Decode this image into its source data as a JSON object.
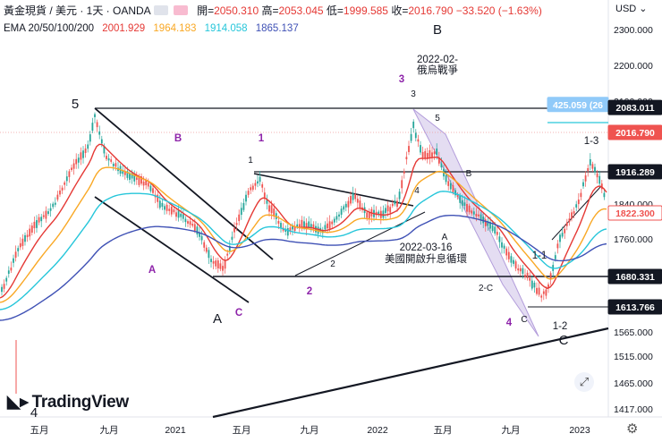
{
  "header": {
    "symbol": "黃金現貨 / 美元 · 1天 · OANDA",
    "ohlc": [
      {
        "label": "開=",
        "value": "2050.310"
      },
      {
        "label": "高=",
        "value": "2053.045"
      },
      {
        "label": "低=",
        "value": "1999.585"
      },
      {
        "label": "收=",
        "value": "2016.790"
      },
      {
        "label": "",
        "value": "−33.520 (−1.63%)"
      }
    ],
    "currency": "USD ⌄"
  },
  "ema": {
    "label": "EMA 20/50/100/200",
    "values": [
      {
        "value": "2001.929",
        "color": "#e53935"
      },
      {
        "value": "1964.183",
        "color": "#f9a825"
      },
      {
        "value": "1914.058",
        "color": "#26c6da"
      },
      {
        "value": "1865.137",
        "color": "#3f51b5"
      }
    ]
  },
  "branding": {
    "logo_text": "TradingView",
    "gear_icon": "gear-icon",
    "wand_icon": "magic-wand-icon"
  },
  "chart_data": {
    "type": "candlestick",
    "instrument": "XAUUSD",
    "timeframe": "1D",
    "x_ticks": [
      "五月",
      "九月",
      "2021",
      "五月",
      "九月",
      "2022",
      "五月",
      "九月",
      "2023"
    ],
    "y_ticks": [
      2300.0,
      2200.0,
      2100.0,
      1840.0,
      1760.0,
      1565.0,
      1515.0,
      1465.0,
      1417.0
    ],
    "y_tick_labels": [
      "2300.000",
      "2200.000",
      "2100.000",
      "1840.000",
      "1760.000",
      "1565.000",
      "1515.000",
      "1465.000",
      "1417.000"
    ],
    "ylim": [
      1400,
      2325
    ],
    "price_labels": [
      {
        "text": "425.059 (26",
        "value": 2091,
        "color": "#90caf9",
        "text_color": "#ffffff"
      },
      {
        "text": "2083.011",
        "value": 2083.011,
        "color": "#131722",
        "text_color": "#ffffff"
      },
      {
        "text": "2016.790",
        "value": 2016.79,
        "color": "#ef5350",
        "text_color": "#ffffff"
      },
      {
        "text": "1916.289",
        "value": 1916.289,
        "color": "#131722",
        "text_color": "#ffffff"
      },
      {
        "text": "1822.300",
        "value": 1822.3,
        "color": "#ffffff",
        "text_color": "#ef5350"
      },
      {
        "text": "1680.331",
        "value": 1680.331,
        "color": "#131722",
        "text_color": "#ffffff"
      },
      {
        "text": "1613.766",
        "value": 1613.766,
        "color": "#131722",
        "text_color": "#ffffff"
      }
    ],
    "annotations": [
      {
        "text": "5",
        "color": "#131722",
        "size": "big"
      },
      {
        "text": "4",
        "color": "#131722",
        "size": "big"
      },
      {
        "text": "A",
        "color": "#131722",
        "size": "big"
      },
      {
        "text": "B",
        "color": "#131722",
        "size": "big"
      },
      {
        "text": "C",
        "color": "#131722",
        "size": "big"
      },
      {
        "text": "B",
        "color": "#8e24aa",
        "size": "mid"
      },
      {
        "text": "1",
        "color": "#8e24aa",
        "size": "mid"
      },
      {
        "text": "A",
        "color": "#8e24aa",
        "size": "mid"
      },
      {
        "text": "C",
        "color": "#8e24aa",
        "size": "mid"
      },
      {
        "text": "2",
        "color": "#8e24aa",
        "size": "mid"
      },
      {
        "text": "3",
        "color": "#8e24aa",
        "size": "mid"
      },
      {
        "text": "4",
        "color": "#8e24aa",
        "size": "mid"
      },
      {
        "text": "1",
        "color": "#131722",
        "size": "small"
      },
      {
        "text": "2",
        "color": "#131722",
        "size": "small"
      },
      {
        "text": "3",
        "color": "#131722",
        "size": "small"
      },
      {
        "text": "4",
        "color": "#131722",
        "size": "small"
      },
      {
        "text": "5",
        "color": "#131722",
        "size": "small"
      },
      {
        "text": "A",
        "color": "#131722",
        "size": "small"
      },
      {
        "text": "B",
        "color": "#131722",
        "size": "small"
      },
      {
        "text": "2-C",
        "color": "#131722",
        "size": "small"
      },
      {
        "text": "C",
        "color": "#131722",
        "size": "small"
      },
      {
        "text": "1-1",
        "color": "#131722",
        "size": "mid"
      },
      {
        "text": "1-2",
        "color": "#131722",
        "size": "mid"
      },
      {
        "text": "1-3",
        "color": "#131722",
        "size": "mid"
      },
      {
        "text": "2022-02-",
        "color": "#131722",
        "size": "mid"
      },
      {
        "text": "俄烏戰爭",
        "color": "#131722",
        "size": "mid"
      },
      {
        "text": "2022-03-16",
        "color": "#131722",
        "size": "mid"
      },
      {
        "text": "美國開啟升息循環",
        "color": "#131722",
        "size": "mid"
      }
    ],
    "grid": false
  }
}
